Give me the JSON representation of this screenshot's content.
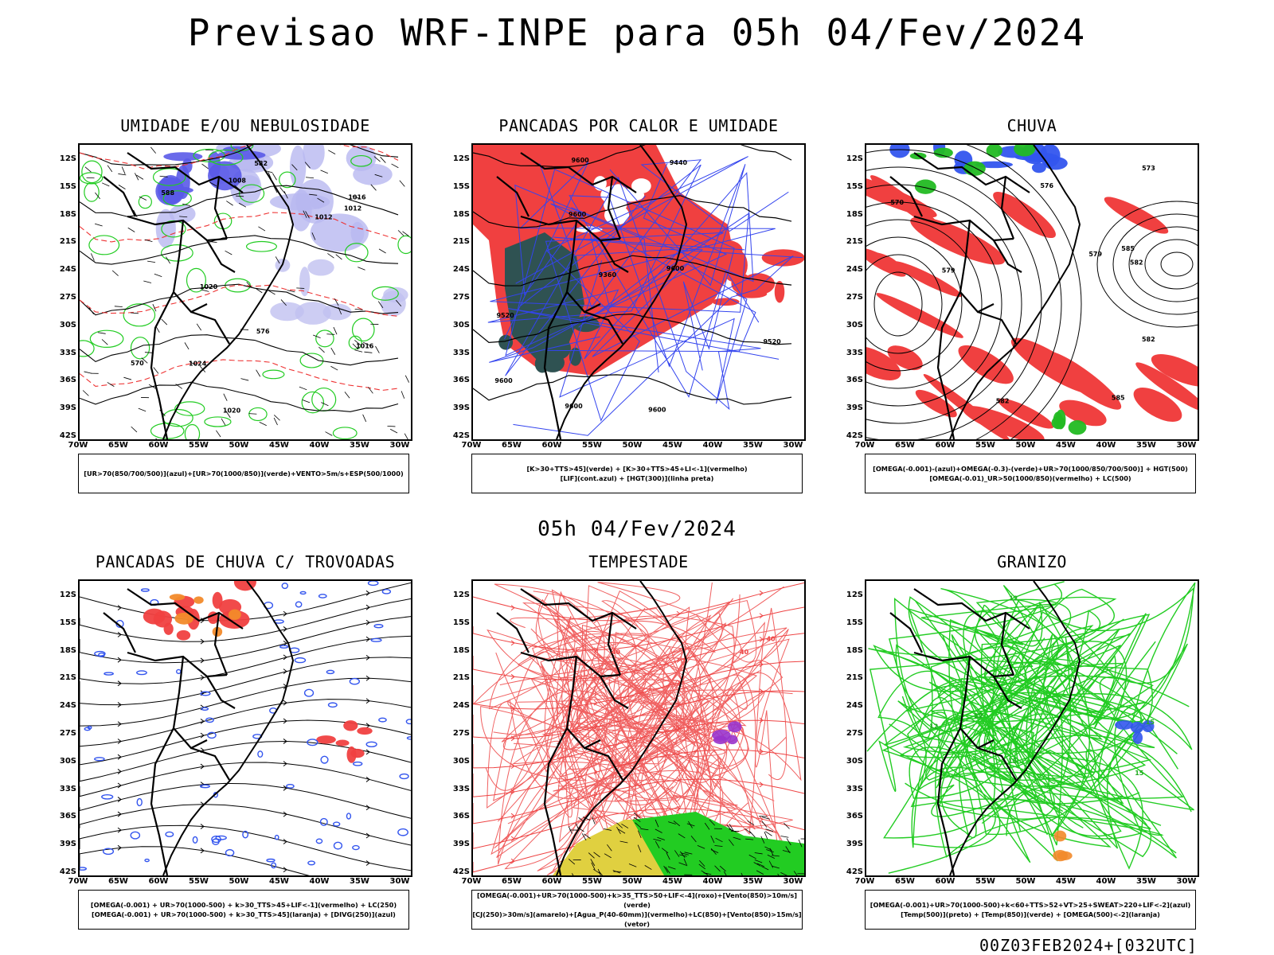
{
  "main_title": "Previsao WRF-INPE  para 05h 04/Fev/2024",
  "mid_title": "05h 04/Fev/2024",
  "footer": "00Z03FEB2024+[032UTC]",
  "lat_labels": [
    "12S",
    "15S",
    "18S",
    "21S",
    "24S",
    "27S",
    "30S",
    "33S",
    "36S",
    "39S",
    "42S"
  ],
  "lon_labels": [
    "70W",
    "65W",
    "60W",
    "55W",
    "50W",
    "45W",
    "40W",
    "35W",
    "30W"
  ],
  "panels": [
    {
      "title": "UMIDADE E/OU NEBULOSIDADE",
      "legend": [
        "[UR>70(850/700/500)](azul)+[UR>70(1000/850)](verde)+VENTO>5m/s+ESP(500/1000)"
      ],
      "contour_labels": [
        "1012",
        "1016",
        "1016",
        "1020",
        "1024",
        "1008",
        "1012",
        "1020",
        "570",
        "576",
        "582",
        "588"
      ]
    },
    {
      "title": "PANCADAS POR CALOR E UMIDADE",
      "legend": [
        "[K>30+TTS>45](verde) + [K>30+TTS>45+LI<-1](vermelho)",
        "[LIF](cont.azul) + [HGT(300)](linha preta)"
      ],
      "contour_labels": [
        "9600",
        "9600",
        "9600",
        "9600",
        "9600",
        "9600",
        "9520",
        "9520",
        "9440",
        "9360"
      ]
    },
    {
      "title": "CHUVA",
      "legend": [
        "[OMEGA(-0.001)-(azul)+OMEGA(-0.3)-(verde)+UR>70(1000/850/700/500)] + HGT(500)",
        "[OMEGA(-0.01)_UR>50(1000/850)(vermelho) + LC(500)"
      ],
      "contour_labels": [
        "582",
        "585",
        "585",
        "582",
        "579",
        "576",
        "573",
        "570",
        "582",
        "579"
      ]
    },
    {
      "title": "PANCADAS DE CHUVA C/ TROVOADAS",
      "legend": [
        "[OMEGA(-0.001) + UR>70(1000-500) + k>30_TTS>45+LIF<-1](vermelho) + LC(250)",
        "[OMEGA(-0.001) + UR>70(1000-500) + k>30_TTS>45](laranja) + [DIVG(250)](azul)"
      ],
      "contour_labels": []
    },
    {
      "title": "TEMPESTADE",
      "legend": [
        "[OMEGA(-0.001)+UR>70(1000-500)+k>35_TTS>50+LIF<-4](roxo)+[Vento(850)>10m/s](verde)",
        "[CJ(250)>30m/s](amarelo)+[Agua_P(40-60mm)](vermelho)+LC(850)+[Vento(850)>15m/s](vetor)"
      ],
      "contour_labels": [
        "40",
        "40",
        "40"
      ]
    },
    {
      "title": "GRANIZO",
      "legend": [
        "[OMEGA(-0.001)+UR>70(1000-500)+k<60+TTS>52+VT>25+SWEAT>220+LIF<-2](azul)",
        "[Temp(500)](preto) + [Temp(850)](verde) + [OMEGA(500)<-2](laranja)"
      ],
      "contour_labels": [
        "15",
        "15",
        "12",
        "12",
        "15",
        "12"
      ]
    }
  ]
}
